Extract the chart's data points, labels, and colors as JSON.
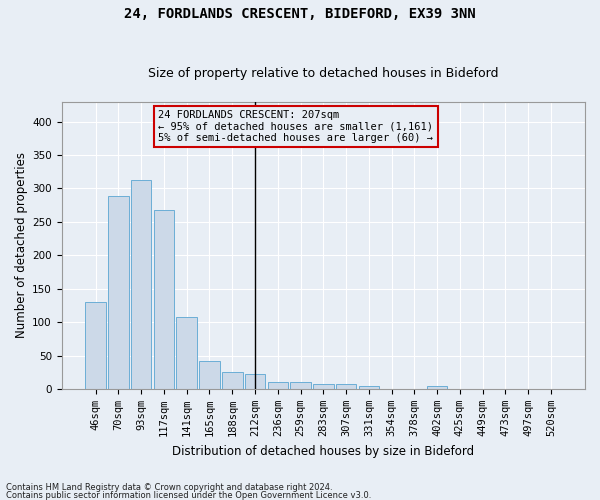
{
  "title1": "24, FORDLANDS CRESCENT, BIDEFORD, EX39 3NN",
  "title2": "Size of property relative to detached houses in Bideford",
  "xlabel": "Distribution of detached houses by size in Bideford",
  "ylabel": "Number of detached properties",
  "footer1": "Contains HM Land Registry data © Crown copyright and database right 2024.",
  "footer2": "Contains public sector information licensed under the Open Government Licence v3.0.",
  "annotation_line1": "24 FORDLANDS CRESCENT: 207sqm",
  "annotation_line2": "← 95% of detached houses are smaller (1,161)",
  "annotation_line3": "5% of semi-detached houses are larger (60) →",
  "bar_labels": [
    "46sqm",
    "70sqm",
    "93sqm",
    "117sqm",
    "141sqm",
    "165sqm",
    "188sqm",
    "212sqm",
    "236sqm",
    "259sqm",
    "283sqm",
    "307sqm",
    "331sqm",
    "354sqm",
    "378sqm",
    "402sqm",
    "425sqm",
    "449sqm",
    "473sqm",
    "497sqm",
    "520sqm"
  ],
  "bar_values": [
    130,
    288,
    313,
    268,
    108,
    42,
    25,
    22,
    10,
    10,
    7,
    7,
    4,
    0,
    0,
    5,
    0,
    0,
    0,
    0,
    0
  ],
  "bar_color": "#ccd9e8",
  "bar_edge_color": "#6baed6",
  "vline_color": "#000000",
  "annotation_box_color": "#cc0000",
  "ylim": [
    0,
    430
  ],
  "yticks": [
    0,
    50,
    100,
    150,
    200,
    250,
    300,
    350,
    400
  ],
  "bg_color": "#e8eef5",
  "grid_color": "#ffffff",
  "title1_fontsize": 10,
  "title2_fontsize": 9,
  "xlabel_fontsize": 8.5,
  "ylabel_fontsize": 8.5,
  "tick_fontsize": 7.5,
  "ann_fontsize": 7.5
}
